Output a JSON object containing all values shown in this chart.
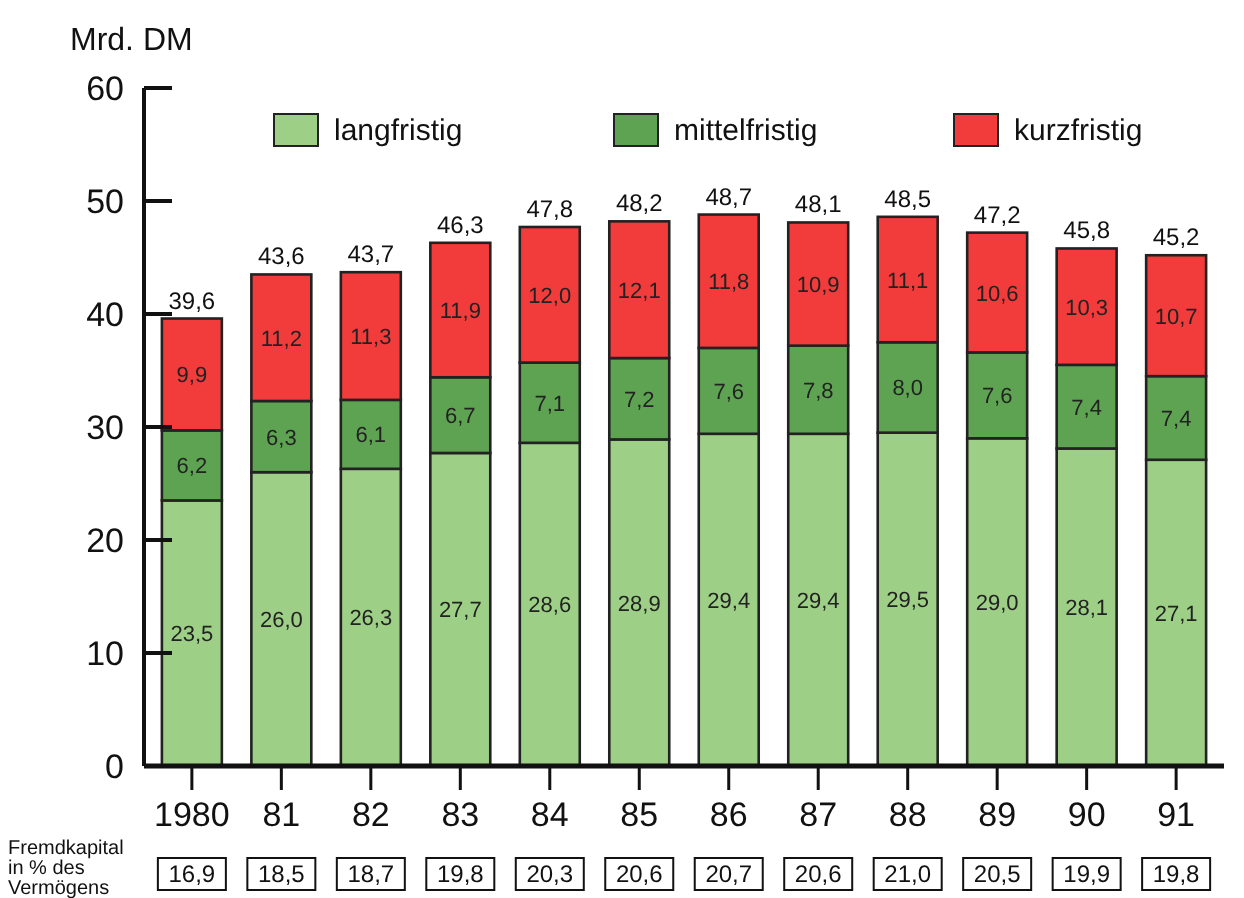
{
  "chart_data": {
    "type": "bar",
    "stacked": true,
    "ylabel": "Mrd. DM",
    "categories": [
      "1980",
      "81",
      "82",
      "83",
      "84",
      "85",
      "86",
      "87",
      "88",
      "89",
      "90",
      "91"
    ],
    "series": [
      {
        "name": "langfristig",
        "color": "#9dcf86",
        "values": [
          23.5,
          26.0,
          26.3,
          27.7,
          28.6,
          28.9,
          29.4,
          29.4,
          29.5,
          29.0,
          28.1,
          27.1
        ],
        "value_labels": [
          "23,5",
          "26,0",
          "26,3",
          "27,7",
          "28,6",
          "28,9",
          "29,4",
          "29,4",
          "29,5",
          "29,0",
          "28,1",
          "27,1"
        ]
      },
      {
        "name": "mittelfristig",
        "color": "#5ea352",
        "values": [
          6.2,
          6.3,
          6.1,
          6.7,
          7.1,
          7.2,
          7.6,
          7.8,
          8.0,
          7.6,
          7.4,
          7.4
        ],
        "value_labels": [
          "6,2",
          "6,3",
          "6,1",
          "6,7",
          "7,1",
          "7,2",
          "7,6",
          "7,8",
          "8,0",
          "7,6",
          "7,4",
          "7,4"
        ]
      },
      {
        "name": "kurzfristig",
        "color": "#f23b3b",
        "values": [
          9.9,
          11.2,
          11.3,
          11.9,
          12.0,
          12.1,
          11.8,
          10.9,
          11.1,
          10.6,
          10.3,
          10.7
        ],
        "value_labels": [
          "9,9",
          "11,2",
          "11,3",
          "11,9",
          "12,0",
          "12,1",
          "11,8",
          "10,9",
          "11,1",
          "10,6",
          "10,3",
          "10,7"
        ]
      }
    ],
    "totals": [
      "39,6",
      "43,6",
      "43,7",
      "46,3",
      "47,8",
      "48,2",
      "48,7",
      "48,1",
      "48,5",
      "47,2",
      "45,8",
      "45,2"
    ],
    "ylim": [
      0,
      60
    ],
    "yticks": [
      0,
      10,
      20,
      30,
      40,
      50,
      60
    ],
    "grid": false,
    "legend": "top",
    "annotations": [
      "Fremdkapital in % des Vermögens",
      "16,9",
      "18,5",
      "18,7",
      "19,8",
      "20,3",
      "20,6",
      "20,7",
      "20,6",
      "21,0",
      "20,5",
      "19,9",
      "19,8"
    ]
  }
}
